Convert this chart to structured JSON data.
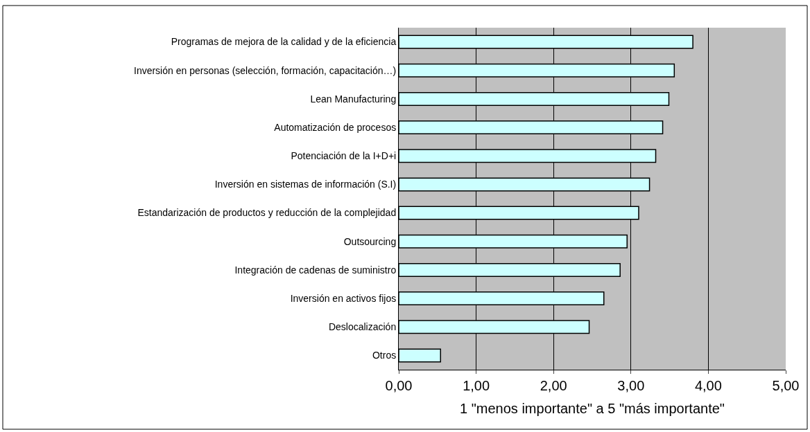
{
  "chart_data": {
    "type": "bar",
    "orientation": "horizontal",
    "xlabel": "1 \"menos importante\" a 5 \"más importante\"",
    "categories": [
      "Programas de mejora de la calidad y de la eficiencia",
      "Inversión en personas (selección, formación, capacitación…)",
      "Lean Manufacturing",
      "Automatización de procesos",
      "Potenciación de la I+D+i",
      "Inversión en sistemas de información (S.I)",
      "Estandarización de productos y reducción de la complejidad",
      "Outsourcing",
      "Integración de cadenas de suministro",
      "Inversión en activos fijos",
      "Deslocalización",
      "Otros"
    ],
    "values": [
      3.8,
      3.56,
      3.49,
      3.41,
      3.32,
      3.24,
      3.1,
      2.95,
      2.86,
      2.65,
      2.46,
      0.54
    ],
    "color": "#ccffff",
    "xlim": [
      0,
      5
    ],
    "xticks": [
      {
        "value": 0,
        "label": "0,00"
      },
      {
        "value": 1,
        "label": "1,00"
      },
      {
        "value": 2,
        "label": "2,00"
      },
      {
        "value": 3,
        "label": "3,00"
      },
      {
        "value": 4,
        "label": "4,00"
      },
      {
        "value": 5,
        "label": "5,00"
      }
    ],
    "grid": "x"
  }
}
